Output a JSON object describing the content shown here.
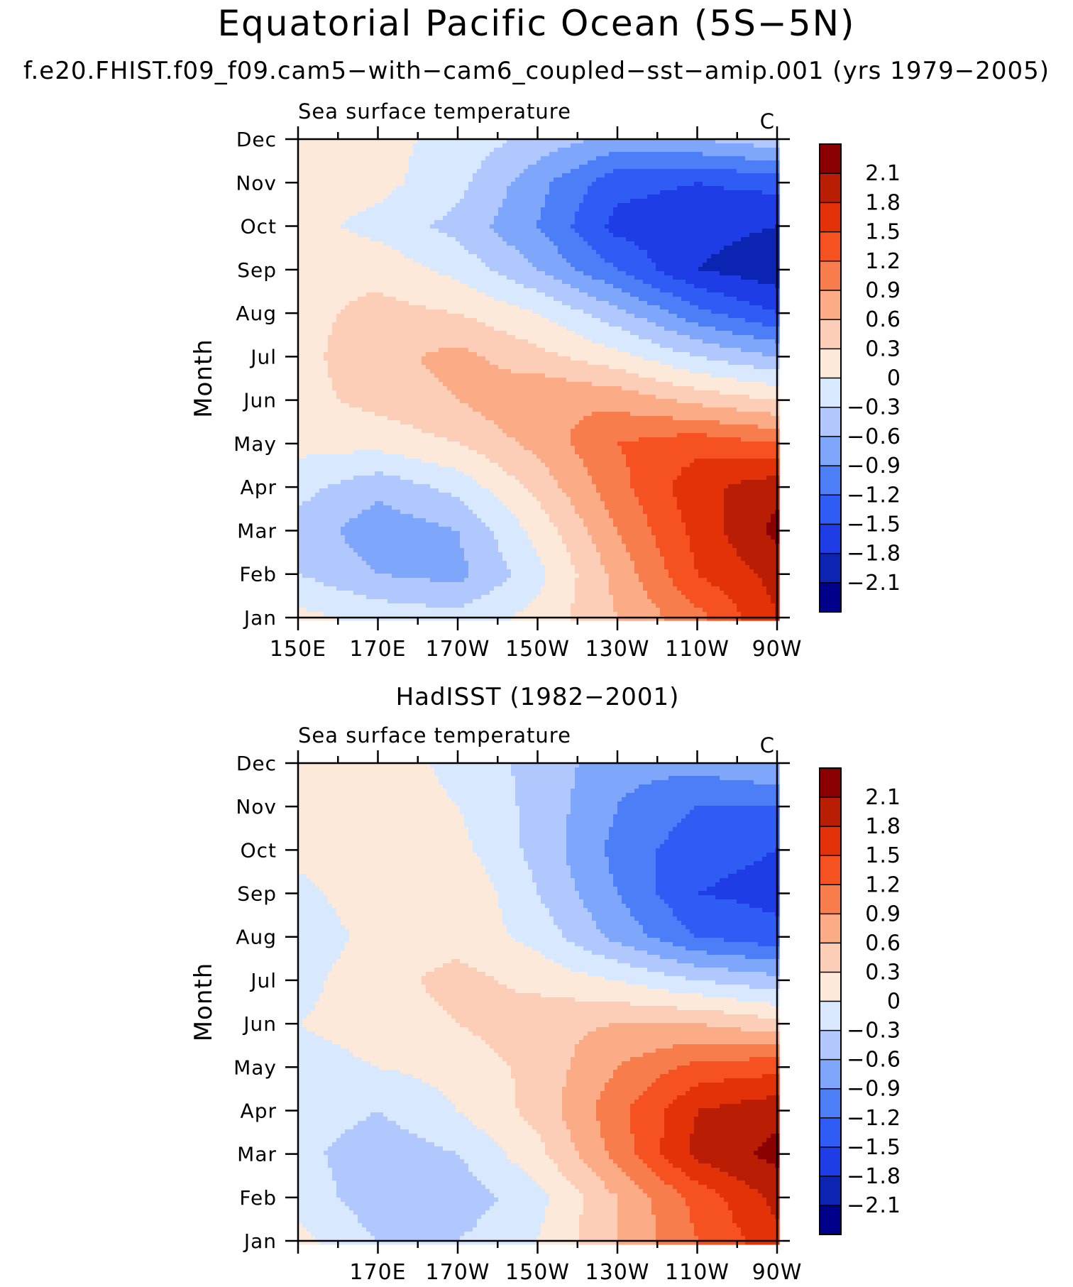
{
  "title": "Equatorial Pacific Ocean (5S−5N)",
  "subtitle": "f.e20.FHIST.f09_f09.cam5−with−cam6_coupled−sst−amip.001 (yrs 1979−2005)",
  "colors": [
    "#00008b",
    "#0b24b2",
    "#1e3de6",
    "#2f5cf5",
    "#4c7ff7",
    "#7ea6fb",
    "#b0c8fd",
    "#d8e8fe",
    "#fde9d9",
    "#fccdb7",
    "#fbab86",
    "#f87d4d",
    "#f55121",
    "#e33208",
    "#b91d04",
    "#8b0000"
  ],
  "chart_data": [
    {
      "type": "heatmap",
      "panel_title": "",
      "left_label": "Sea surface temperature",
      "right_label": "C",
      "ylabel": "Month",
      "xticks": [
        "150E",
        "170E",
        "170W",
        "150W",
        "130W",
        "110W",
        "90W"
      ],
      "yticks": [
        "Jan",
        "Feb",
        "Mar",
        "Apr",
        "May",
        "Jun",
        "Jul",
        "Aug",
        "Sep",
        "Oct",
        "Nov",
        "Dec"
      ],
      "levels": [
        "2.1",
        "1.8",
        "1.5",
        "1.2",
        "0.9",
        "0.6",
        "0.3",
        "0",
        "−0.3",
        "−0.6",
        "−0.9",
        "−1.2",
        "−1.5",
        "−1.8",
        "−2.1"
      ],
      "x": [
        150,
        170,
        190,
        210,
        230,
        250,
        270
      ],
      "grid": [
        [
          0.1,
          -0.1,
          -0.2,
          0.1,
          0.6,
          1.1,
          1.8
        ],
        [
          -0.3,
          -0.6,
          -0.7,
          -0.1,
          0.7,
          1.5,
          1.9
        ],
        [
          -0.4,
          -0.8,
          -0.6,
          0.1,
          0.9,
          1.6,
          2.2
        ],
        [
          -0.2,
          -0.5,
          -0.2,
          0.4,
          1.1,
          1.7,
          2.0
        ],
        [
          0.1,
          0.1,
          0.3,
          0.7,
          1.2,
          1.4,
          1.2
        ],
        [
          0.2,
          0.4,
          0.6,
          0.9,
          0.8,
          0.5,
          0.3
        ],
        [
          0.2,
          0.5,
          0.7,
          0.4,
          0.1,
          -0.3,
          -0.6
        ],
        [
          0.2,
          0.4,
          0.3,
          0.0,
          -0.5,
          -1.1,
          -1.5
        ],
        [
          0.2,
          0.2,
          -0.1,
          -0.6,
          -1.2,
          -1.8,
          -2.0
        ],
        [
          0.1,
          -0.1,
          -0.4,
          -0.9,
          -1.6,
          -1.7,
          -1.8
        ],
        [
          0.2,
          0.1,
          -0.2,
          -0.8,
          -1.4,
          -1.5,
          -1.4
        ],
        [
          0.2,
          0.1,
          -0.1,
          -0.4,
          -0.7,
          -0.6,
          -0.4
        ]
      ]
    },
    {
      "type": "heatmap",
      "panel_title": "HadISST (1982−2001)",
      "left_label": "Sea surface temperature",
      "right_label": "C",
      "ylabel": "Month",
      "xticks": [
        "",
        "170E",
        "170W",
        "150W",
        "130W",
        "110W",
        "90W"
      ],
      "yticks": [
        "Jan",
        "Feb",
        "Mar",
        "Apr",
        "May",
        "Jun",
        "Jul",
        "Aug",
        "Sep",
        "Oct",
        "Nov",
        "Dec"
      ],
      "levels": [
        "2.1",
        "1.8",
        "1.5",
        "1.2",
        "0.9",
        "0.6",
        "0.3",
        "0",
        "−0.3",
        "−0.6",
        "−0.9",
        "−1.2",
        "−1.5",
        "−1.8",
        "−2.1"
      ],
      "x": [
        150,
        170,
        190,
        210,
        230,
        250,
        270
      ],
      "grid": [
        [
          0.1,
          -0.3,
          -0.3,
          0.0,
          0.6,
          1.2,
          1.7
        ],
        [
          -0.1,
          -0.5,
          -0.5,
          -0.1,
          0.6,
          1.3,
          1.9
        ],
        [
          -0.2,
          -0.5,
          -0.3,
          0.2,
          1.0,
          1.9,
          2.2
        ],
        [
          -0.1,
          -0.3,
          0.0,
          0.4,
          1.1,
          1.8,
          2.0
        ],
        [
          -0.1,
          0.0,
          0.1,
          0.4,
          0.9,
          1.3,
          1.4
        ],
        [
          0.0,
          0.1,
          0.3,
          0.5,
          0.6,
          0.6,
          0.4
        ],
        [
          -0.1,
          0.2,
          0.4,
          0.2,
          0.0,
          -0.3,
          -0.5
        ],
        [
          -0.2,
          0.1,
          0.2,
          -0.1,
          -0.7,
          -1.2,
          -1.4
        ],
        [
          -0.1,
          0.2,
          0.3,
          -0.3,
          -0.9,
          -1.5,
          -1.6
        ],
        [
          0.1,
          0.2,
          0.1,
          -0.4,
          -1.0,
          -1.4,
          -1.5
        ],
        [
          0.2,
          0.2,
          0.0,
          -0.4,
          -0.9,
          -1.2,
          -1.2
        ],
        [
          0.2,
          0.2,
          -0.1,
          -0.4,
          -0.8,
          -0.8,
          -0.6
        ]
      ]
    }
  ]
}
